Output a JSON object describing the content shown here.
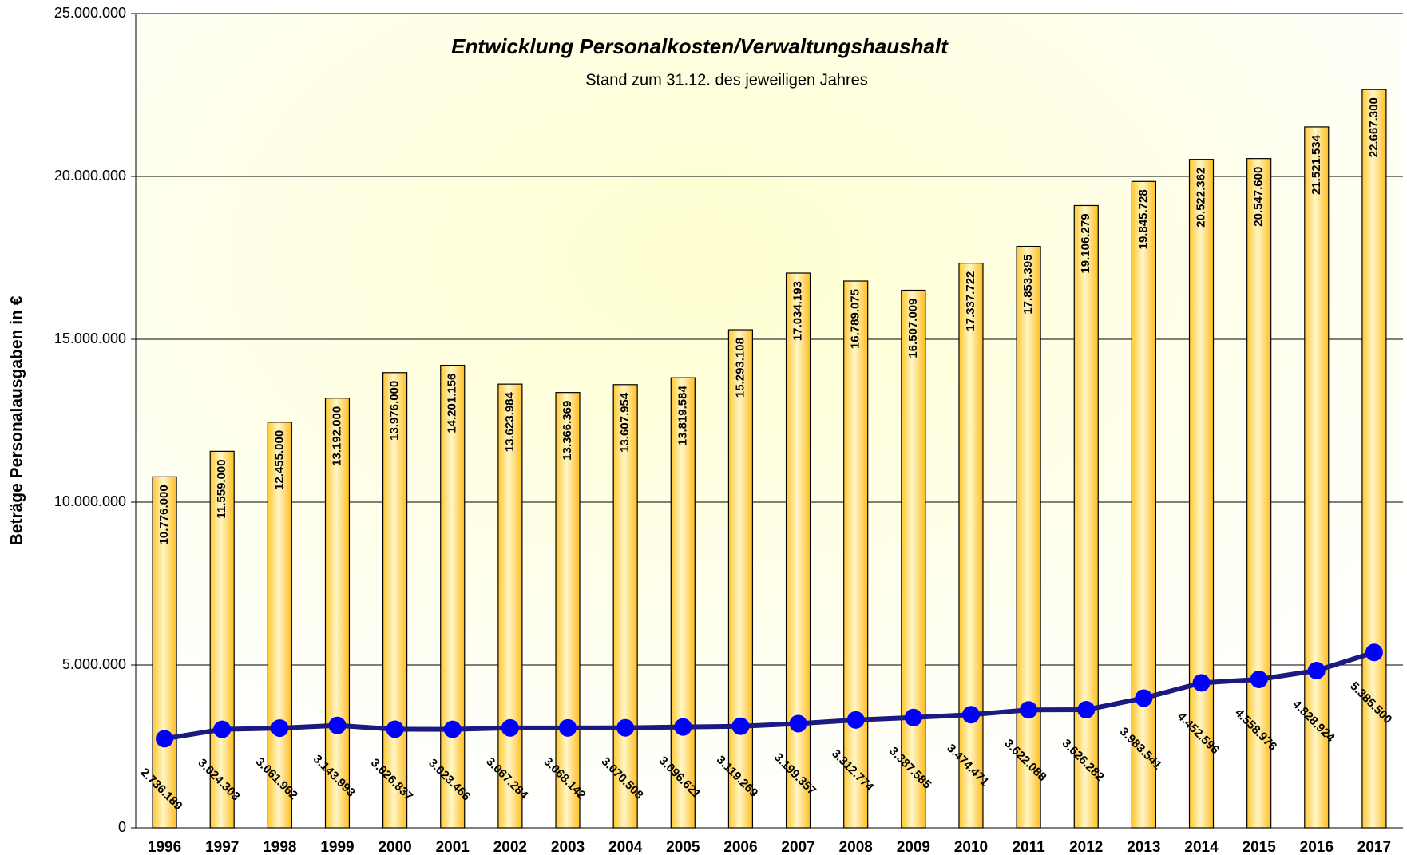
{
  "chart_data": {
    "type": "bar",
    "title": "Entwicklung Personalkosten/Verwaltungshaushalt",
    "subtitle": "Stand zum 31.12. des jeweiligen Jahres",
    "y_label": "Beträge Personalausgaben  in €",
    "categories": [
      "1996",
      "1997",
      "1998",
      "1999",
      "2000",
      "2001",
      "2002",
      "2003",
      "2004",
      "2005",
      "2006",
      "2007",
      "2008",
      "2009",
      "2010",
      "2011",
      "2012",
      "2013",
      "2014",
      "2015",
      "2016",
      "2017"
    ],
    "series": [
      {
        "type": "bar",
        "color": "#ffc830",
        "values": [
          10776000,
          11559000,
          12455000,
          13192000,
          13976000,
          14201156,
          13623984,
          13366369,
          13607954,
          13819584,
          15293108,
          17034193,
          16789075,
          16507009,
          17337722,
          17853395,
          19106279,
          19845728,
          20522362,
          20547600,
          21521534,
          22667300
        ],
        "value_labels": [
          "10.776.000",
          "11.559.000",
          "12.455.000",
          "13.192.000",
          "13.976.000",
          "14.201.156",
          "13.623.984",
          "13.366.369",
          "13.607.954",
          "13.819.584",
          "15.293.108",
          "17.034.193",
          "16.789.075",
          "16.507.009",
          "17.337.722",
          "17.853.395",
          "19.106.279",
          "19.845.728",
          "20.522.362",
          "20.547.600",
          "21.521.534",
          "22.667.300"
        ]
      },
      {
        "type": "line",
        "color": "#1a1a80",
        "values": [
          2736189,
          3024303,
          3061962,
          3143993,
          3026837,
          3023466,
          3067284,
          3068142,
          3070508,
          3096621,
          3119269,
          3199357,
          3312774,
          3387585,
          3474471,
          3622088,
          3626282,
          3983541,
          4452596,
          4558976,
          4828924,
          5385500
        ],
        "value_labels": [
          "2.736.189",
          "3.024.303",
          "3.061.962",
          "3.143.993",
          "3.026.837",
          "3.023.466",
          "3.067.284",
          "3.068.142",
          "3.070.508",
          "3.096.621",
          "3.119.269",
          "3.199.357",
          "3.312.774",
          "3.387.585",
          "3.474.471",
          "3.622.088",
          "3.626.282",
          "3.983.541",
          "4.452.596",
          "4.558.976",
          "4.828.924",
          "5.385.500"
        ]
      }
    ],
    "ylim": [
      0,
      25000000
    ],
    "yticks": [
      0,
      {
        "value": 5000000,
        "label": "5.000.000"
      },
      {
        "value": 10000000,
        "label": "10.000.000"
      },
      {
        "value": 15000000,
        "label": "15.000.000"
      },
      {
        "value": 20000000,
        "label": "20.000.000"
      },
      {
        "value": 25000000,
        "label": "25.000.000"
      }
    ],
    "grid": true
  }
}
